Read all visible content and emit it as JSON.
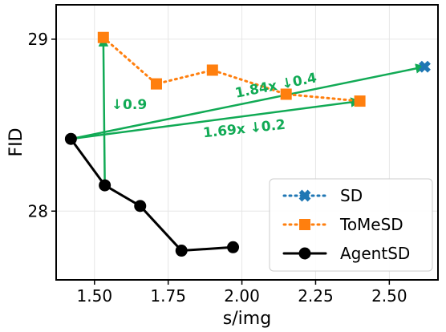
{
  "chart_data": {
    "type": "line",
    "xlabel": "s/img",
    "ylabel": "FID",
    "xlim": [
      1.37,
      2.665
    ],
    "ylim": [
      27.6,
      29.2
    ],
    "xticks": [
      "1.50",
      "1.75",
      "2.00",
      "2.25",
      "2.50"
    ],
    "xtick_values": [
      1.5,
      1.75,
      2.0,
      2.25,
      2.5
    ],
    "yticks": [
      "28",
      "29"
    ],
    "ytick_values": [
      28,
      29
    ],
    "grid": true,
    "legend_position": "lower-right",
    "series": [
      {
        "name": "SD",
        "color": "#1f77b4",
        "marker": "x",
        "linestyle": "dotted",
        "x": [
          2.62
        ],
        "y": [
          28.84
        ]
      },
      {
        "name": "ToMeSD",
        "color": "#ff7f0e",
        "marker": "square",
        "linestyle": "dotted",
        "x": [
          1.53,
          1.71,
          1.9,
          2.15,
          2.4
        ],
        "y": [
          29.01,
          28.74,
          28.82,
          28.68,
          28.64
        ]
      },
      {
        "name": "AgentSD",
        "color": "#000000",
        "marker": "circle",
        "linestyle": "solid",
        "x": [
          1.42,
          1.535,
          1.655,
          1.795,
          1.97
        ],
        "y": [
          28.42,
          28.15,
          28.03,
          27.77,
          27.79
        ]
      }
    ],
    "annotations": [
      {
        "text": "1.84x ↓0.4",
        "color": "#11aa55",
        "from": [
          1.42,
          28.42
        ],
        "to": [
          2.62,
          28.84
        ]
      },
      {
        "text": "1.69x ↓0.2",
        "color": "#11aa55",
        "from": [
          1.42,
          28.42
        ],
        "to": [
          2.4,
          28.64
        ]
      },
      {
        "text": "↓0.9",
        "color": "#11aa55",
        "from": [
          1.535,
          28.15
        ],
        "to": [
          1.53,
          29.01
        ]
      }
    ]
  }
}
